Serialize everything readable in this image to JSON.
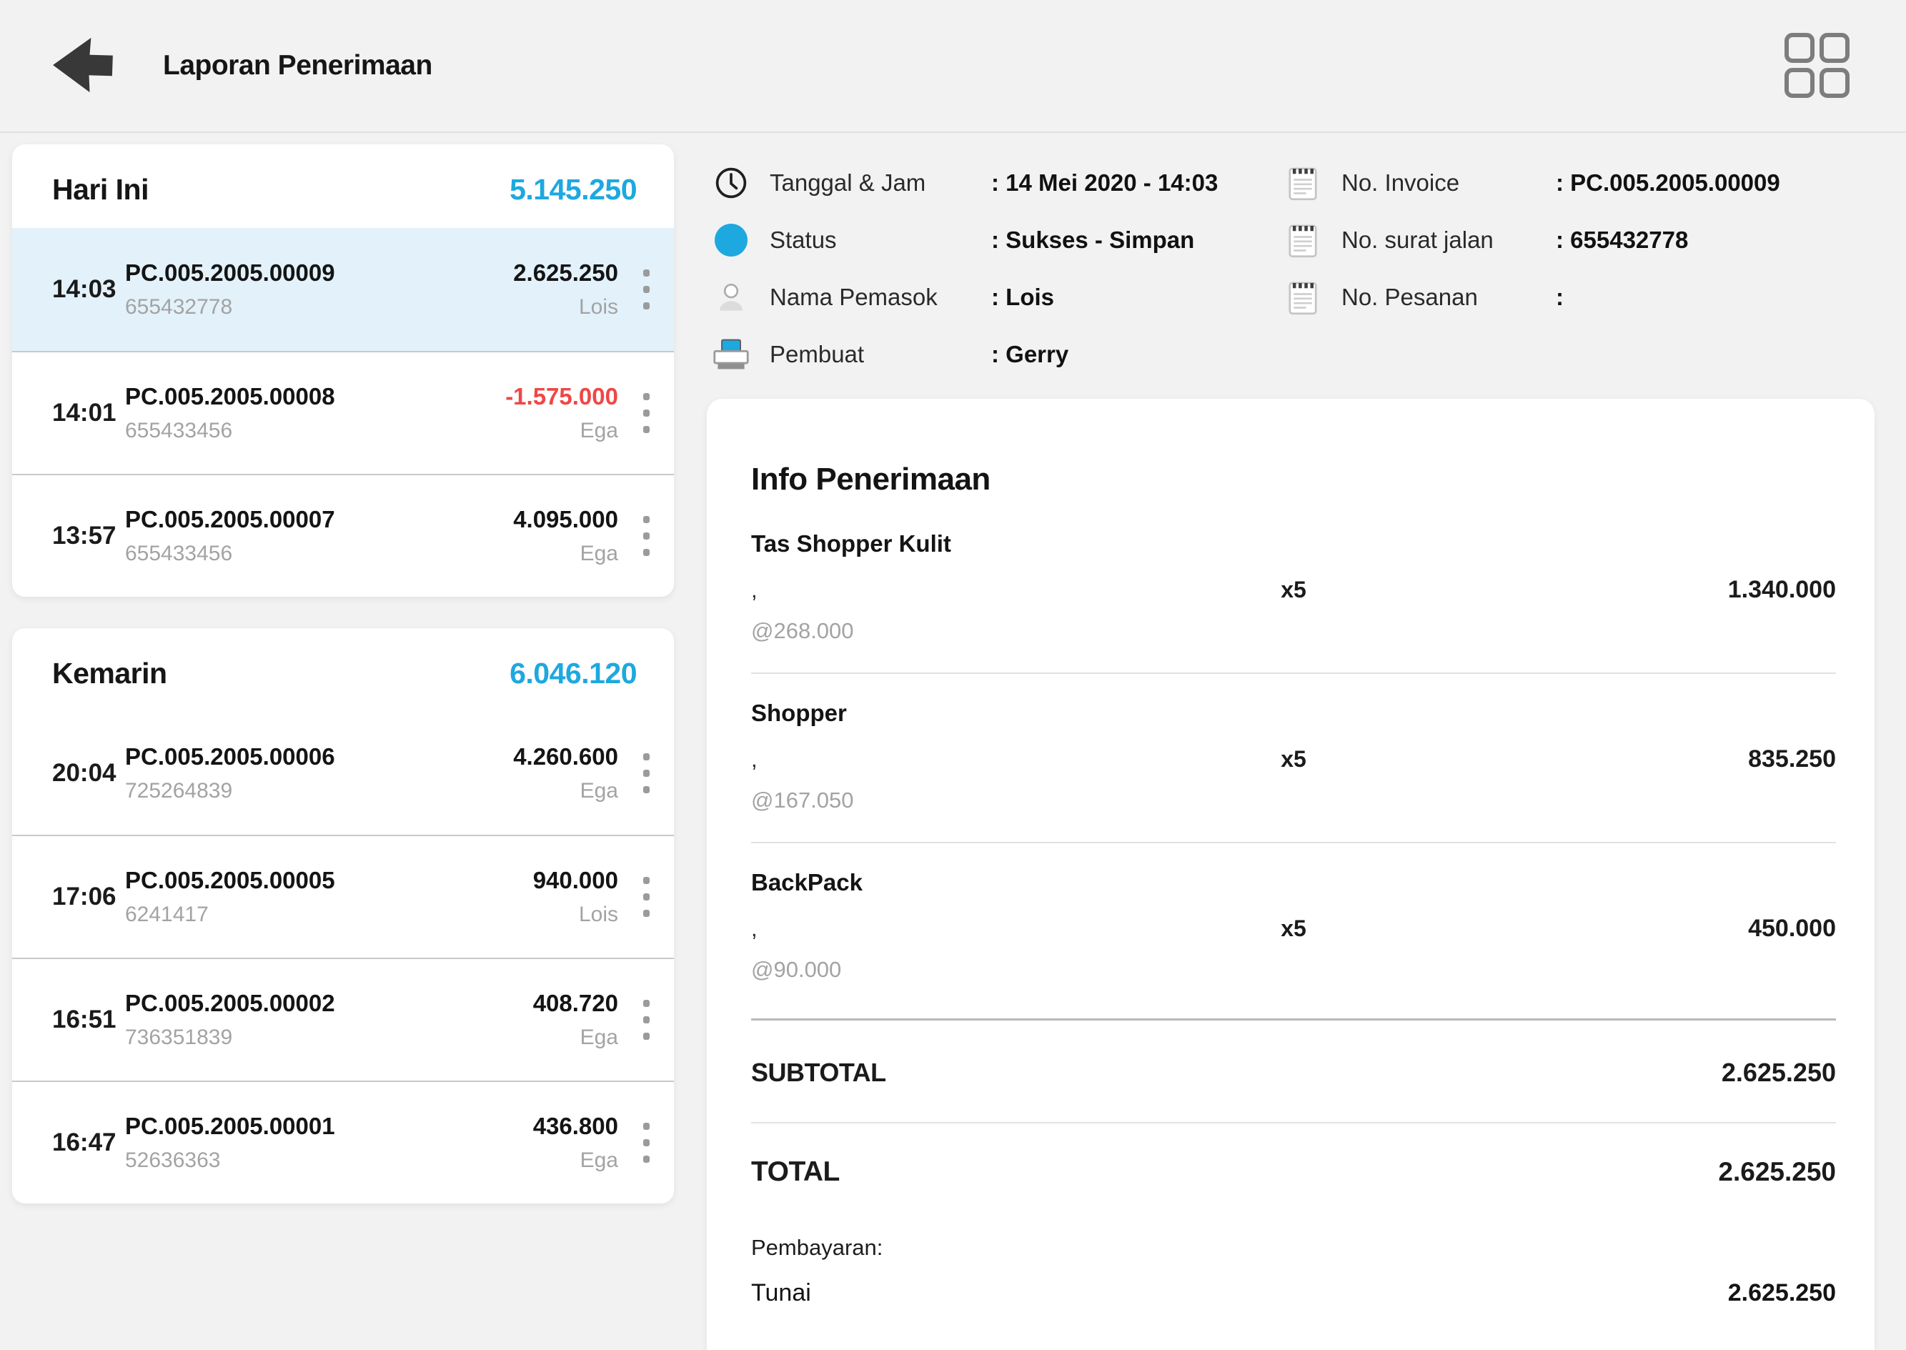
{
  "header": {
    "title": "Laporan Penerimaan",
    "back_icon": "arrow-back-icon",
    "menu_icon": "grid-menu-icon"
  },
  "colors": {
    "accent": "#1EA8E0",
    "negative": "#EF4747",
    "selected_bg": "#E3F1FA",
    "background": "#F2F2F2",
    "muted": "#A3A3A3"
  },
  "list": {
    "groups": [
      {
        "label": "Hari Ini",
        "total": "5.145.250",
        "items": [
          {
            "time": "14:03",
            "invoice": "PC.005.2005.00009",
            "ref": "655432778",
            "amount": "2.625.250",
            "person": "Lois",
            "selected": true,
            "negative": false
          },
          {
            "time": "14:01",
            "invoice": "PC.005.2005.00008",
            "ref": "655433456",
            "amount": "-1.575.000",
            "person": "Ega",
            "selected": false,
            "negative": true
          },
          {
            "time": "13:57",
            "invoice": "PC.005.2005.00007",
            "ref": "655433456",
            "amount": "4.095.000",
            "person": "Ega",
            "selected": false,
            "negative": false
          }
        ]
      },
      {
        "label": "Kemarin",
        "total": "6.046.120",
        "items": [
          {
            "time": "20:04",
            "invoice": "PC.005.2005.00006",
            "ref": "725264839",
            "amount": "4.260.600",
            "person": "Ega",
            "selected": false,
            "negative": false
          },
          {
            "time": "17:06",
            "invoice": "PC.005.2005.00005",
            "ref": "6241417",
            "amount": "940.000",
            "person": "Lois",
            "selected": false,
            "negative": false
          },
          {
            "time": "16:51",
            "invoice": "PC.005.2005.00002",
            "ref": "736351839",
            "amount": "408.720",
            "person": "Ega",
            "selected": false,
            "negative": false
          },
          {
            "time": "16:47",
            "invoice": "PC.005.2005.00001",
            "ref": "52636363",
            "amount": "436.800",
            "person": "Ega",
            "selected": false,
            "negative": false
          }
        ]
      }
    ]
  },
  "detail": {
    "fields_left": [
      {
        "icon": "clock-icon",
        "label": "Tanggal & Jam",
        "value": ": 14 Mei 2020 - 14:03"
      },
      {
        "icon": "status-dot-icon",
        "label": "Status",
        "value": ": Sukses - Simpan"
      },
      {
        "icon": "person-icon",
        "label": "Nama Pemasok",
        "value": ": Lois"
      },
      {
        "icon": "printer-icon",
        "label": "Pembuat",
        "value": ": Gerry"
      }
    ],
    "fields_right": [
      {
        "icon": "note-icon",
        "label": "No. Invoice",
        "value": ": PC.005.2005.00009"
      },
      {
        "icon": "note-icon",
        "label": "No. surat jalan",
        "value": ": 655432778"
      },
      {
        "icon": "note-icon",
        "label": "No. Pesanan",
        "value": ":"
      }
    ],
    "info": {
      "title": "Info Penerimaan",
      "products": [
        {
          "name": "Tas Shopper Kulit",
          "variant": ",",
          "qty": "x5",
          "amount": "1.340.000",
          "unit_price": "@268.000"
        },
        {
          "name": "Shopper",
          "variant": ",",
          "qty": "x5",
          "amount": "835.250",
          "unit_price": "@167.050"
        },
        {
          "name": "BackPack",
          "variant": ",",
          "qty": "x5",
          "amount": "450.000",
          "unit_price": "@90.000"
        }
      ],
      "subtotal_label": "SUBTOTAL",
      "subtotal": "2.625.250",
      "total_label": "TOTAL",
      "total": "2.625.250",
      "payment_label": "Pembayaran:",
      "payment_method": "Tunai",
      "payment_amount": "2.625.250"
    }
  }
}
